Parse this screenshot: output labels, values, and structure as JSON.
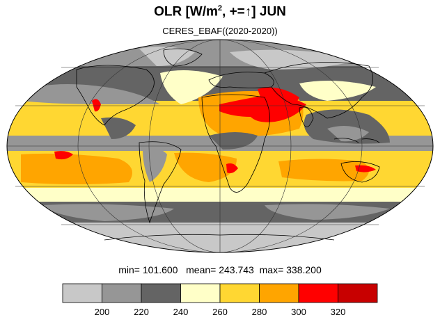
{
  "title": {
    "prefix": "OLR [W/m",
    "sup": "2",
    "suffix": ", +=↑] JUN"
  },
  "subtitle": "CERES_EBAF((2020-2020))",
  "stats": {
    "min_label": "min=",
    "min": "101.600",
    "mean_label": "mean=",
    "mean": "243.743",
    "max_label": "max=",
    "max": "338.200"
  },
  "colorbar": {
    "colors": [
      "#c8c8c8",
      "#969696",
      "#646464",
      "#ffffc8",
      "#ffd732",
      "#ffa500",
      "#ff0000",
      "#c80000"
    ],
    "tick_labels": [
      "200",
      "220",
      "240",
      "260",
      "280",
      "300",
      "320"
    ]
  },
  "map": {
    "projection": "mollweide",
    "palette": {
      "lt_gray": "#c8c8c8",
      "md_gray": "#969696",
      "dk_gray": "#646464",
      "cream": "#ffffc8",
      "yellow": "#ffd732",
      "orange": "#ffa500",
      "red": "#ff0000"
    }
  }
}
